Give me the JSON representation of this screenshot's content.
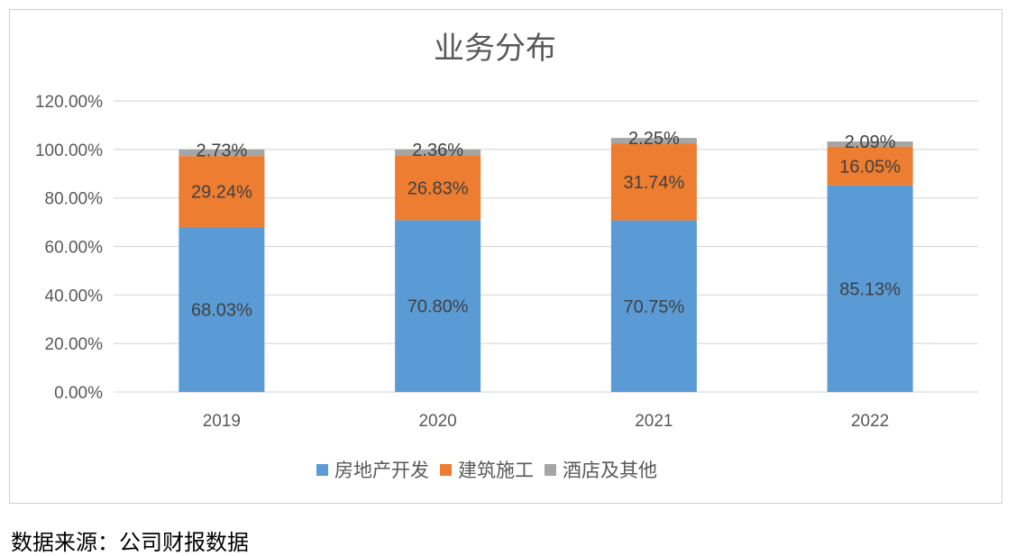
{
  "chart_data": {
    "type": "bar",
    "stacked": true,
    "title": "业务分布",
    "categories": [
      "2019",
      "2020",
      "2021",
      "2022"
    ],
    "series": [
      {
        "name": "房地产开发",
        "color": "#5B9BD5",
        "values": [
          68.03,
          70.8,
          70.75,
          85.13
        ],
        "labels": [
          "68.03%",
          "70.80%",
          "70.75%",
          "85.13%"
        ]
      },
      {
        "name": "建筑施工",
        "color": "#ED7D31",
        "values": [
          29.24,
          26.83,
          31.74,
          16.05
        ],
        "labels": [
          "29.24%",
          "26.83%",
          "31.74%",
          "16.05%"
        ]
      },
      {
        "name": "酒店及其他",
        "color": "#A5A5A5",
        "values": [
          2.73,
          2.36,
          2.25,
          2.09
        ],
        "labels": [
          "2.73%",
          "2.36%",
          "2.25%",
          "2.09%"
        ]
      }
    ],
    "y_ticks": [
      "0.00%",
      "20.00%",
      "40.00%",
      "60.00%",
      "80.00%",
      "100.00%",
      "120.00%"
    ],
    "ylim": [
      0,
      120
    ],
    "grid": true,
    "legend_position": "bottom"
  },
  "source_note": "数据来源：公司财报数据"
}
